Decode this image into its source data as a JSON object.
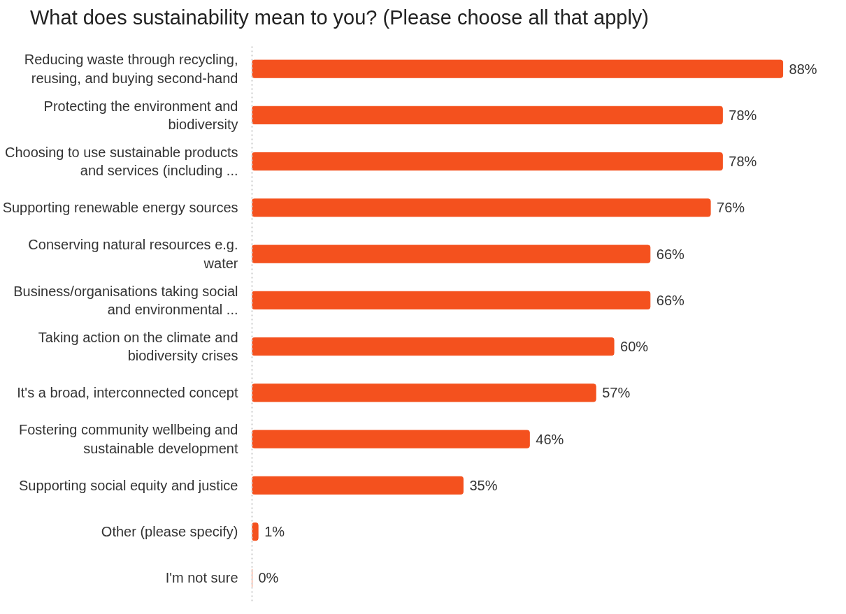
{
  "chart_data": {
    "type": "bar",
    "orientation": "horizontal",
    "title": "What does sustainability mean to you? (Please choose all that apply)",
    "categories": [
      "Reducing waste through recycling, reusing, and buying second-hand",
      "Protecting the environment and biodiversity",
      "Choosing to use sustainable products and services (including ...",
      "Supporting renewable energy sources",
      "Conserving natural resources e.g. water",
      "Business/organisations taking social and environmental ...",
      "Taking action on the climate and biodiversity crises",
      "It's a broad, interconnected concept",
      "Fostering community wellbeing and sustainable development",
      "Supporting social equity and justice",
      "Other (please specify)",
      "I'm not sure"
    ],
    "values": [
      88,
      78,
      78,
      76,
      66,
      66,
      60,
      57,
      46,
      35,
      1,
      0
    ],
    "value_labels": [
      "88%",
      "78%",
      "78%",
      "76%",
      "66%",
      "66%",
      "60%",
      "57%",
      "46%",
      "35%",
      "1%",
      "0%"
    ],
    "color": "#f4511e",
    "grid": false
  }
}
